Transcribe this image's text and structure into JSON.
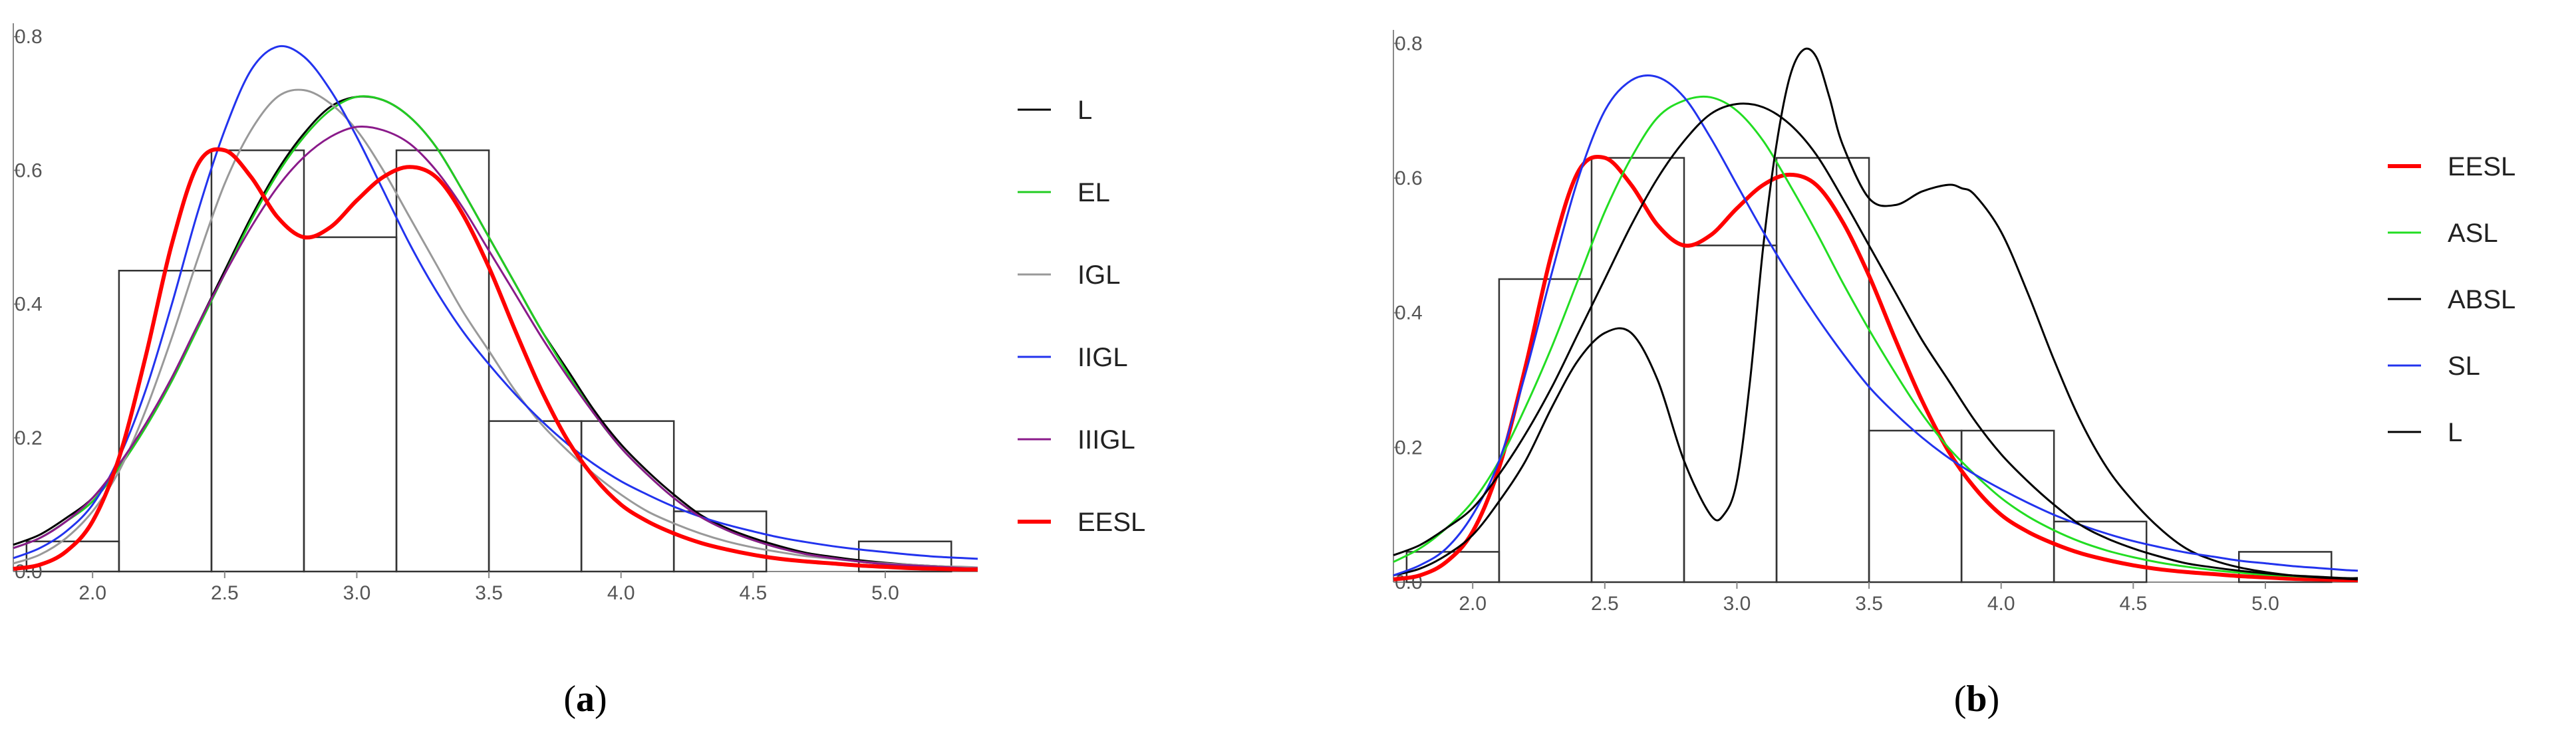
{
  "chart_data": [
    {
      "panel": "a",
      "type": "line",
      "title": "",
      "xlabel": "",
      "ylabel": "",
      "xlim": [
        1.7,
        5.35
      ],
      "ylim": [
        0,
        0.82
      ],
      "xticks": [
        "2.0",
        "2.5",
        "3.0",
        "3.5",
        "4.0",
        "4.5",
        "5.0"
      ],
      "yticks": [
        "0.0",
        "0.2",
        "0.4",
        "0.6",
        "0.8"
      ],
      "histogram": {
        "bins": [
          1.75,
          2.1,
          2.45,
          2.8,
          3.15,
          3.5,
          3.85,
          4.2,
          4.55,
          4.9,
          5.25
        ],
        "heights": [
          0.045,
          0.45,
          0.63,
          0.5,
          0.63,
          0.225,
          0.225,
          0.09,
          0.0,
          0.045
        ]
      },
      "series": [
        {
          "name": "L",
          "color": "#000000",
          "x": [
            1.7,
            1.8,
            1.9,
            2.0,
            2.1,
            2.2,
            2.3,
            2.4,
            2.5,
            2.6,
            2.7,
            2.8,
            2.9,
            3.0,
            3.1,
            3.2,
            3.3,
            3.4,
            3.5,
            3.6,
            3.7,
            3.8,
            3.9,
            4.0,
            4.1,
            4.2,
            4.3,
            4.4,
            4.5,
            4.6,
            4.7,
            4.8,
            4.9,
            5.0,
            5.1,
            5.2,
            5.3,
            5.35
          ],
          "y": [
            0.04,
            0.055,
            0.08,
            0.11,
            0.16,
            0.22,
            0.29,
            0.37,
            0.45,
            0.53,
            0.6,
            0.655,
            0.695,
            0.71,
            0.705,
            0.68,
            0.635,
            0.57,
            0.5,
            0.43,
            0.36,
            0.3,
            0.24,
            0.19,
            0.15,
            0.115,
            0.085,
            0.065,
            0.05,
            0.038,
            0.028,
            0.022,
            0.017,
            0.013,
            0.01,
            0.008,
            0.006,
            0.006
          ]
        },
        {
          "name": "EL",
          "color": "#22cc22",
          "x": [
            1.7,
            1.8,
            1.9,
            2.0,
            2.1,
            2.2,
            2.3,
            2.4,
            2.5,
            2.6,
            2.7,
            2.8,
            2.9,
            3.0,
            3.1,
            3.2,
            3.3,
            3.4,
            3.5,
            3.6,
            3.7,
            3.8,
            3.9,
            4.0,
            4.1,
            4.2,
            4.3,
            4.4,
            4.5,
            4.6,
            4.7,
            4.8,
            4.9,
            5.0,
            5.1,
            5.2,
            5.3,
            5.35
          ],
          "y": [
            0.035,
            0.05,
            0.075,
            0.105,
            0.155,
            0.215,
            0.285,
            0.365,
            0.445,
            0.525,
            0.595,
            0.65,
            0.69,
            0.71,
            0.705,
            0.68,
            0.635,
            0.57,
            0.5,
            0.43,
            0.36,
            0.295,
            0.235,
            0.185,
            0.145,
            0.11,
            0.082,
            0.062,
            0.047,
            0.035,
            0.026,
            0.02,
            0.015,
            0.011,
            0.009,
            0.007,
            0.005,
            0.005
          ]
        },
        {
          "name": "IGL",
          "color": "#999999",
          "x": [
            1.7,
            1.8,
            1.9,
            2.0,
            2.1,
            2.2,
            2.3,
            2.4,
            2.5,
            2.6,
            2.7,
            2.8,
            2.9,
            3.0,
            3.1,
            3.2,
            3.3,
            3.4,
            3.5,
            3.6,
            3.7,
            3.8,
            3.9,
            4.0,
            4.1,
            4.2,
            4.3,
            4.4,
            4.5,
            4.6,
            4.7,
            4.8,
            4.9,
            5.0,
            5.1,
            5.2,
            5.3,
            5.35
          ],
          "y": [
            0.012,
            0.025,
            0.05,
            0.09,
            0.15,
            0.24,
            0.35,
            0.47,
            0.58,
            0.66,
            0.71,
            0.72,
            0.7,
            0.66,
            0.6,
            0.53,
            0.46,
            0.39,
            0.33,
            0.27,
            0.22,
            0.18,
            0.145,
            0.115,
            0.09,
            0.072,
            0.057,
            0.045,
            0.036,
            0.029,
            0.023,
            0.019,
            0.015,
            0.012,
            0.01,
            0.008,
            0.007,
            0.006
          ]
        },
        {
          "name": "IIGL",
          "color": "#2233ee",
          "x": [
            1.7,
            1.8,
            1.9,
            2.0,
            2.1,
            2.2,
            2.3,
            2.4,
            2.5,
            2.6,
            2.7,
            2.8,
            2.9,
            3.0,
            3.1,
            3.2,
            3.3,
            3.4,
            3.5,
            3.6,
            3.7,
            3.8,
            3.9,
            4.0,
            4.1,
            4.2,
            4.3,
            4.4,
            4.5,
            4.6,
            4.7,
            4.8,
            4.9,
            5.0,
            5.1,
            5.2,
            5.3,
            5.35
          ],
          "y": [
            0.02,
            0.035,
            0.06,
            0.1,
            0.17,
            0.27,
            0.4,
            0.54,
            0.66,
            0.75,
            0.785,
            0.77,
            0.72,
            0.65,
            0.57,
            0.49,
            0.42,
            0.36,
            0.31,
            0.265,
            0.225,
            0.19,
            0.16,
            0.135,
            0.115,
            0.097,
            0.082,
            0.07,
            0.06,
            0.051,
            0.044,
            0.038,
            0.033,
            0.029,
            0.025,
            0.022,
            0.02,
            0.019
          ]
        },
        {
          "name": "IIIGL",
          "color": "#8a1a8a",
          "x": [
            1.7,
            1.8,
            1.9,
            2.0,
            2.1,
            2.2,
            2.3,
            2.4,
            2.5,
            2.6,
            2.7,
            2.8,
            2.9,
            3.0,
            3.1,
            3.2,
            3.3,
            3.4,
            3.5,
            3.6,
            3.7,
            3.8,
            3.9,
            4.0,
            4.1,
            4.2,
            4.3,
            4.4,
            4.5,
            4.6,
            4.7,
            4.8,
            4.9,
            5.0,
            5.1,
            5.2,
            5.3,
            5.35
          ],
          "y": [
            0.035,
            0.05,
            0.075,
            0.11,
            0.16,
            0.22,
            0.29,
            0.37,
            0.445,
            0.515,
            0.575,
            0.62,
            0.65,
            0.665,
            0.66,
            0.64,
            0.6,
            0.545,
            0.48,
            0.415,
            0.35,
            0.29,
            0.235,
            0.185,
            0.145,
            0.11,
            0.082,
            0.062,
            0.047,
            0.035,
            0.026,
            0.02,
            0.015,
            0.011,
            0.009,
            0.007,
            0.005,
            0.005
          ]
        },
        {
          "name": "EESL",
          "color": "#ff0000",
          "x": [
            1.7,
            1.8,
            1.9,
            2.0,
            2.1,
            2.2,
            2.3,
            2.4,
            2.5,
            2.6,
            2.7,
            2.8,
            2.9,
            3.0,
            3.1,
            3.2,
            3.3,
            3.4,
            3.5,
            3.6,
            3.7,
            3.8,
            3.9,
            4.0,
            4.1,
            4.2,
            4.3,
            4.4,
            4.5,
            4.6,
            4.7,
            4.8,
            4.9,
            5.0,
            5.1,
            5.2,
            5.3,
            5.35
          ],
          "y": [
            0.004,
            0.01,
            0.03,
            0.075,
            0.17,
            0.32,
            0.49,
            0.61,
            0.63,
            0.59,
            0.53,
            0.5,
            0.515,
            0.555,
            0.59,
            0.605,
            0.59,
            0.535,
            0.455,
            0.36,
            0.27,
            0.195,
            0.14,
            0.1,
            0.075,
            0.057,
            0.043,
            0.033,
            0.025,
            0.019,
            0.015,
            0.012,
            0.009,
            0.007,
            0.005,
            0.004,
            0.003,
            0.003
          ]
        }
      ],
      "legend": [
        "L",
        "EL",
        "IGL",
        "IIGL",
        "IIIGL",
        "EESL"
      ],
      "legend_position": "right"
    },
    {
      "panel": "b",
      "type": "line",
      "title": "",
      "xlabel": "",
      "ylabel": "",
      "xlim": [
        1.7,
        5.35
      ],
      "ylim": [
        0,
        0.82
      ],
      "xticks": [
        "2.0",
        "2.5",
        "3.0",
        "3.5",
        "4.0",
        "4.5",
        "5.0"
      ],
      "yticks": [
        "0.0",
        "0.2",
        "0.4",
        "0.6",
        "0.8"
      ],
      "histogram": {
        "bins": [
          1.75,
          2.1,
          2.45,
          2.8,
          3.15,
          3.5,
          3.85,
          4.2,
          4.55,
          4.9,
          5.25
        ],
        "heights": [
          0.045,
          0.45,
          0.63,
          0.5,
          0.63,
          0.225,
          0.225,
          0.09,
          0.0,
          0.045
        ]
      },
      "series": [
        {
          "name": "EESL",
          "color": "#ff0000",
          "x": [
            1.7,
            1.8,
            1.9,
            2.0,
            2.1,
            2.2,
            2.3,
            2.4,
            2.5,
            2.6,
            2.7,
            2.8,
            2.9,
            3.0,
            3.1,
            3.2,
            3.3,
            3.4,
            3.5,
            3.6,
            3.7,
            3.8,
            3.9,
            4.0,
            4.1,
            4.2,
            4.3,
            4.4,
            4.5,
            4.6,
            4.7,
            4.8,
            4.9,
            5.0,
            5.1,
            5.2,
            5.3,
            5.35
          ],
          "y": [
            0.004,
            0.01,
            0.03,
            0.075,
            0.17,
            0.32,
            0.49,
            0.61,
            0.63,
            0.59,
            0.53,
            0.5,
            0.515,
            0.555,
            0.59,
            0.605,
            0.59,
            0.535,
            0.455,
            0.36,
            0.27,
            0.195,
            0.14,
            0.1,
            0.075,
            0.057,
            0.043,
            0.033,
            0.025,
            0.019,
            0.015,
            0.012,
            0.009,
            0.007,
            0.005,
            0.004,
            0.003,
            0.003
          ]
        },
        {
          "name": "ASL",
          "color": "#22dd22",
          "x": [
            1.7,
            1.8,
            1.9,
            2.0,
            2.1,
            2.2,
            2.3,
            2.4,
            2.5,
            2.6,
            2.7,
            2.8,
            2.9,
            3.0,
            3.1,
            3.2,
            3.3,
            3.4,
            3.5,
            3.6,
            3.7,
            3.8,
            3.9,
            4.0,
            4.1,
            4.2,
            4.3,
            4.4,
            4.5,
            4.6,
            4.7,
            4.8,
            4.9,
            5.0,
            5.1,
            5.2,
            5.3,
            5.35
          ],
          "y": [
            0.03,
            0.05,
            0.08,
            0.12,
            0.18,
            0.26,
            0.35,
            0.45,
            0.55,
            0.63,
            0.69,
            0.715,
            0.72,
            0.7,
            0.655,
            0.59,
            0.52,
            0.445,
            0.375,
            0.31,
            0.25,
            0.2,
            0.16,
            0.125,
            0.098,
            0.077,
            0.06,
            0.047,
            0.037,
            0.029,
            0.023,
            0.018,
            0.014,
            0.011,
            0.009,
            0.007,
            0.006,
            0.005
          ]
        },
        {
          "name": "ABSL",
          "color": "#000000",
          "x": [
            1.7,
            1.8,
            1.9,
            2.0,
            2.1,
            2.2,
            2.3,
            2.4,
            2.5,
            2.6,
            2.7,
            2.8,
            2.9,
            2.95,
            3.0,
            3.05,
            3.1,
            3.15,
            3.2,
            3.25,
            3.3,
            3.35,
            3.4,
            3.5,
            3.6,
            3.7,
            3.8,
            3.85,
            3.9,
            4.0,
            4.1,
            4.2,
            4.3,
            4.4,
            4.5,
            4.6,
            4.7,
            4.8,
            4.9,
            5.0,
            5.1,
            5.2,
            5.3,
            5.35
          ],
          "y": [
            0.01,
            0.02,
            0.04,
            0.07,
            0.12,
            0.18,
            0.26,
            0.33,
            0.37,
            0.37,
            0.3,
            0.18,
            0.1,
            0.1,
            0.15,
            0.3,
            0.5,
            0.65,
            0.75,
            0.79,
            0.78,
            0.72,
            0.65,
            0.57,
            0.56,
            0.58,
            0.59,
            0.585,
            0.575,
            0.52,
            0.43,
            0.33,
            0.24,
            0.17,
            0.12,
            0.08,
            0.05,
            0.033,
            0.022,
            0.015,
            0.01,
            0.007,
            0.005,
            0.004
          ]
        },
        {
          "name": "SL",
          "color": "#2233ee",
          "x": [
            1.7,
            1.8,
            1.9,
            2.0,
            2.1,
            2.2,
            2.3,
            2.4,
            2.5,
            2.6,
            2.7,
            2.8,
            2.9,
            3.0,
            3.1,
            3.2,
            3.3,
            3.4,
            3.5,
            3.6,
            3.7,
            3.8,
            3.9,
            4.0,
            4.1,
            4.2,
            4.3,
            4.4,
            4.5,
            4.6,
            4.7,
            4.8,
            4.9,
            5.0,
            5.1,
            5.2,
            5.3,
            5.35
          ],
          "y": [
            0.01,
            0.025,
            0.05,
            0.1,
            0.18,
            0.31,
            0.46,
            0.6,
            0.7,
            0.745,
            0.75,
            0.72,
            0.66,
            0.59,
            0.52,
            0.455,
            0.395,
            0.34,
            0.29,
            0.25,
            0.215,
            0.185,
            0.16,
            0.138,
            0.118,
            0.1,
            0.085,
            0.072,
            0.061,
            0.052,
            0.044,
            0.038,
            0.032,
            0.028,
            0.024,
            0.021,
            0.018,
            0.017
          ]
        },
        {
          "name": "L",
          "color": "#000000",
          "x": [
            1.7,
            1.8,
            1.9,
            2.0,
            2.1,
            2.2,
            2.3,
            2.4,
            2.5,
            2.6,
            2.7,
            2.8,
            2.9,
            3.0,
            3.1,
            3.2,
            3.3,
            3.4,
            3.5,
            3.6,
            3.7,
            3.8,
            3.9,
            4.0,
            4.1,
            4.2,
            4.3,
            4.4,
            4.5,
            4.6,
            4.7,
            4.8,
            4.9,
            5.0,
            5.1,
            5.2,
            5.3,
            5.35
          ],
          "y": [
            0.04,
            0.055,
            0.08,
            0.11,
            0.16,
            0.22,
            0.29,
            0.37,
            0.45,
            0.53,
            0.6,
            0.655,
            0.695,
            0.71,
            0.705,
            0.68,
            0.635,
            0.57,
            0.5,
            0.43,
            0.36,
            0.3,
            0.24,
            0.19,
            0.15,
            0.115,
            0.085,
            0.065,
            0.05,
            0.038,
            0.028,
            0.022,
            0.017,
            0.013,
            0.01,
            0.008,
            0.006,
            0.006
          ]
        }
      ],
      "legend": [
        "EESL",
        "ASL",
        "ABSL",
        "SL",
        "L"
      ],
      "legend_position": "right"
    }
  ],
  "panel_labels": [
    {
      "open": "(",
      "letter": "a",
      "close": ")"
    },
    {
      "open": "(",
      "letter": "b",
      "close": ")"
    }
  ]
}
